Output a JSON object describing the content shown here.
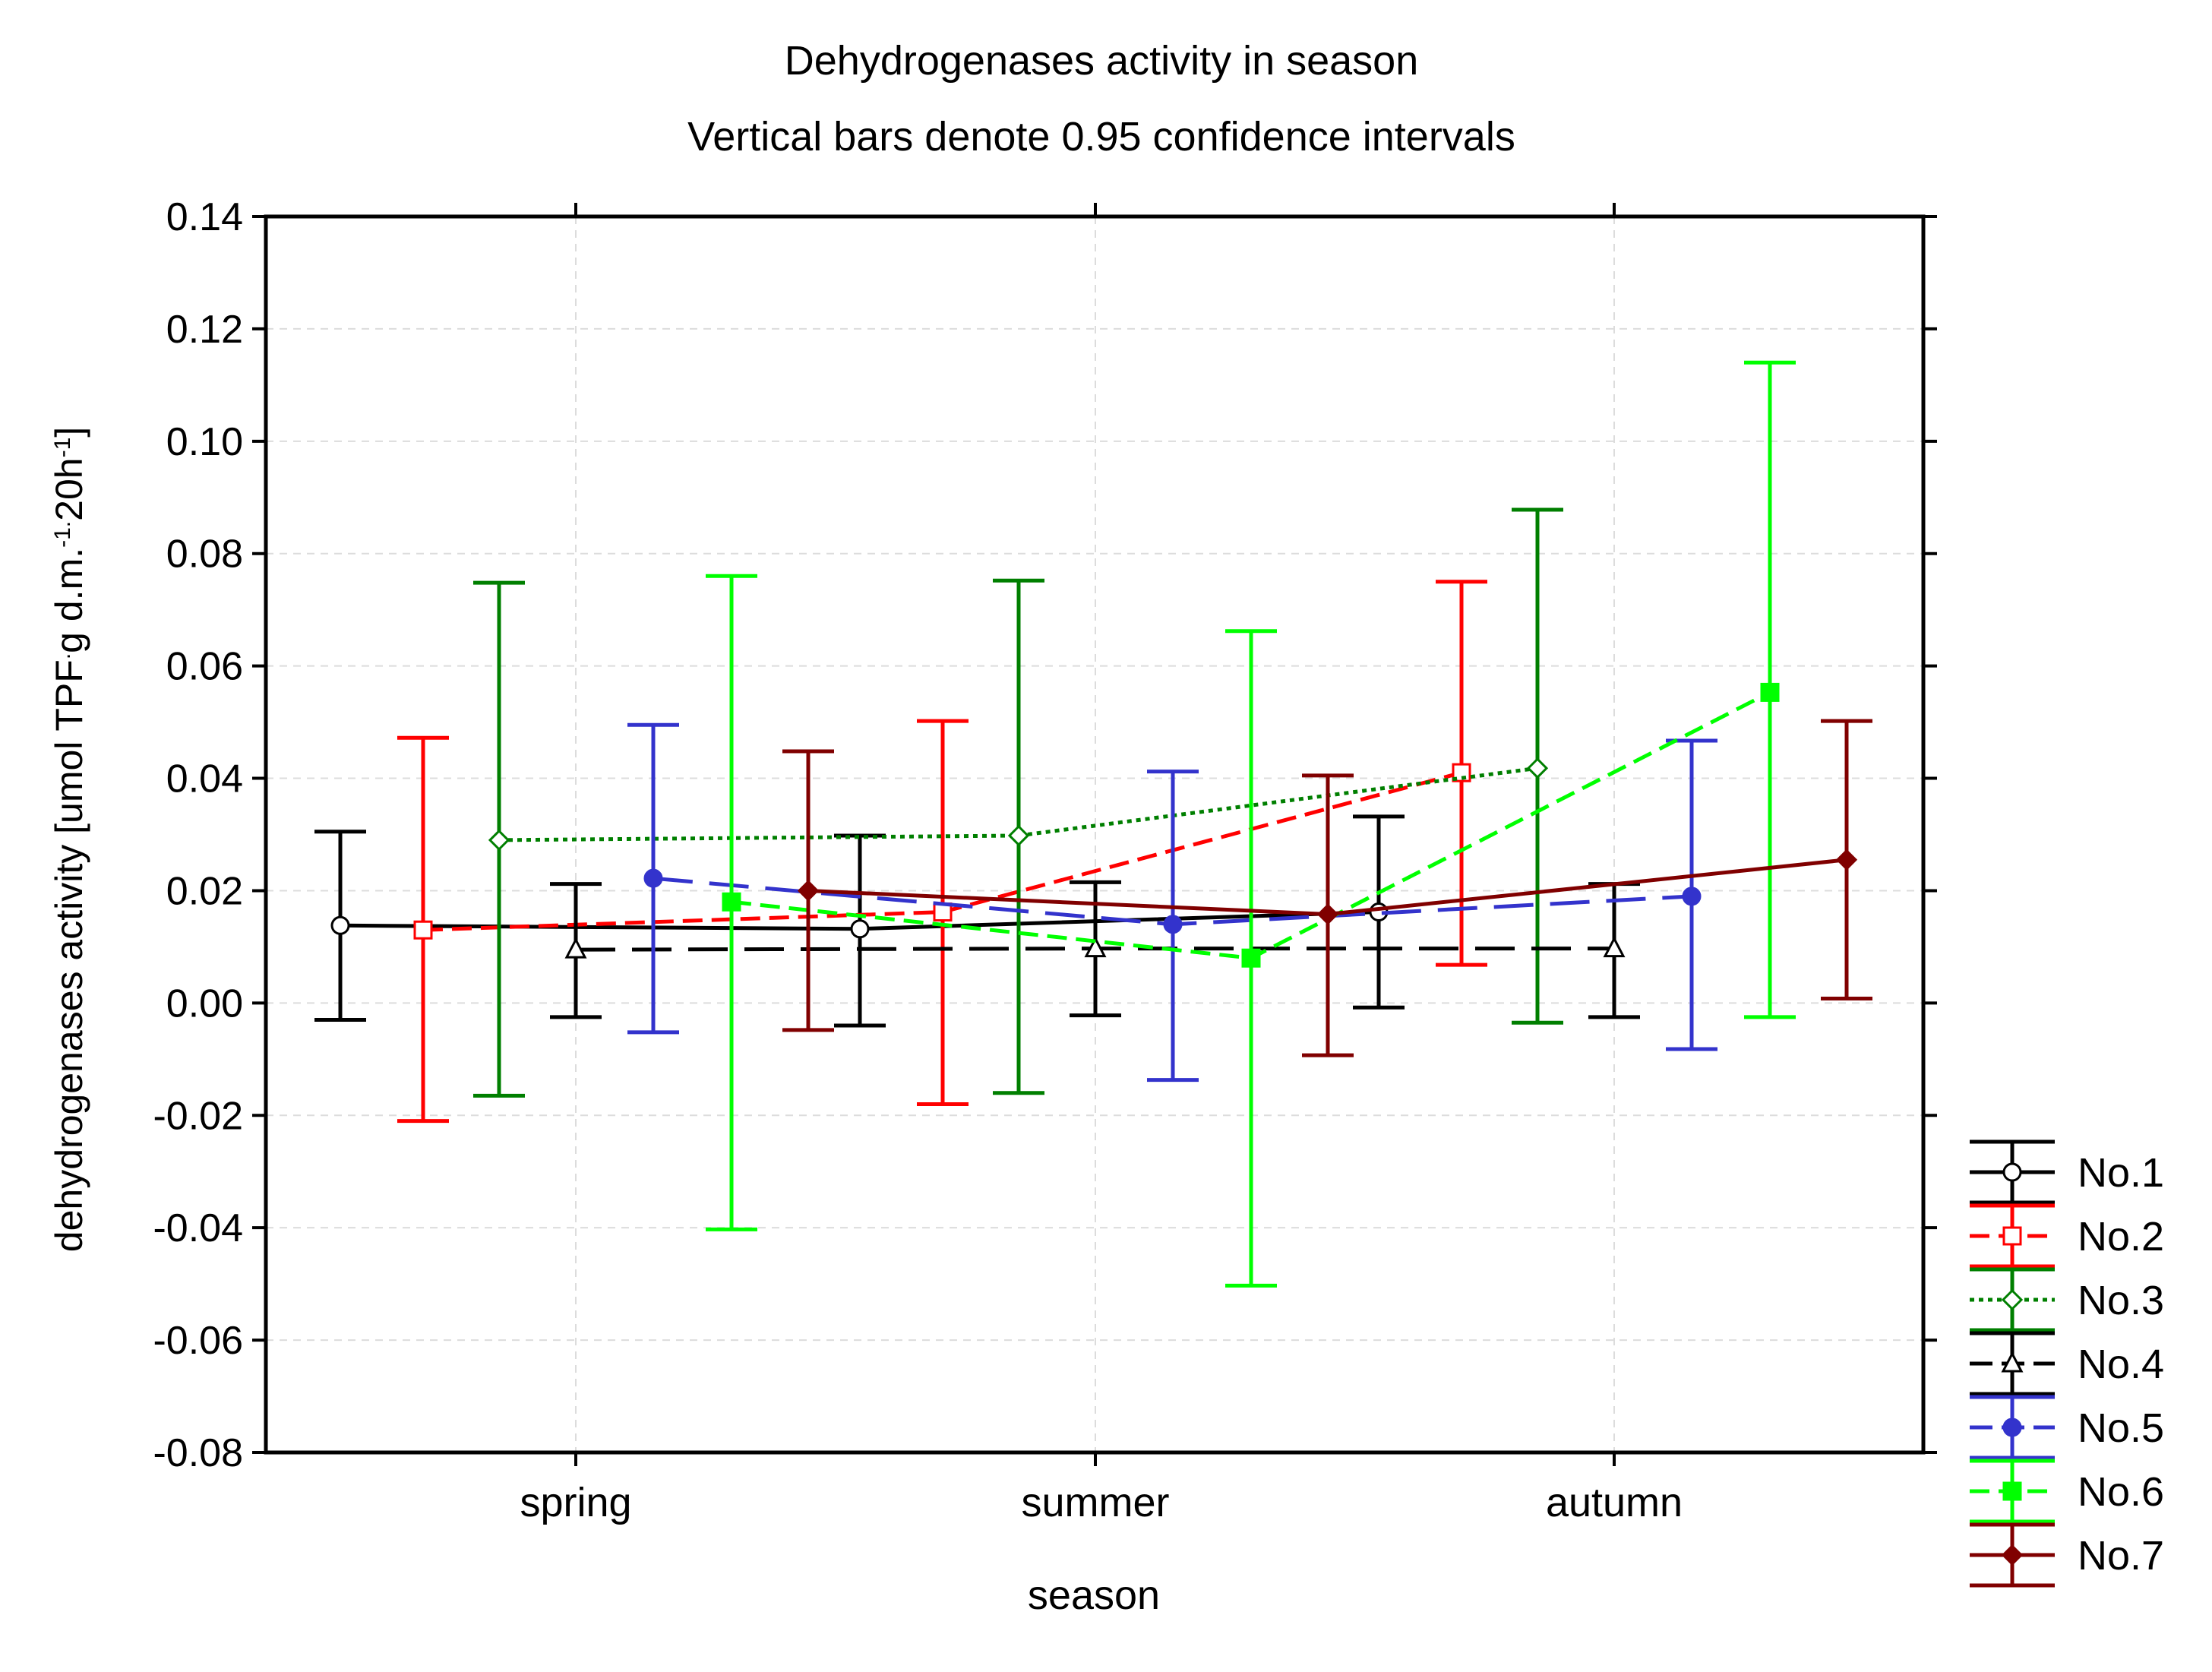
{
  "chart_data": {
    "type": "line",
    "title": "Dehydrogenases activity in season",
    "subtitle": "Vertical bars denote 0.95 confidence intervals",
    "xlabel": "season",
    "ylabel": {
      "parts": [
        {
          "t": "dehydrogenases activity [umol TPF",
          "s": ""
        },
        {
          "t": ".",
          "s": "sup"
        },
        {
          "t": "g d.m.",
          "s": ""
        },
        {
          "t": "-1",
          "s": "sup"
        },
        {
          "t": ".",
          "s": "sup"
        },
        {
          "t": "20h",
          "s": ""
        },
        {
          "t": "-1",
          "s": "sup"
        },
        {
          "t": "]",
          "s": ""
        }
      ]
    },
    "categories": [
      "spring",
      "summer",
      "autumn"
    ],
    "ylim": [
      -0.08,
      0.14
    ],
    "yticks": [
      "-0.08",
      "-0.06",
      "-0.04",
      "-0.02",
      "0.00",
      "0.02",
      "0.04",
      "0.06",
      "0.08",
      "0.10",
      "0.12",
      "0.14"
    ],
    "grid": true,
    "legend_position": "bottom-right outside plot",
    "series": [
      {
        "name": "No.1",
        "color": "#000000",
        "line": "solid",
        "marker": "circle-open",
        "values": [
          0.0138,
          0.0132,
          0.0162
        ],
        "lower": [
          -0.003,
          -0.004,
          -0.0008
        ],
        "upper": [
          0.0305,
          0.0298,
          0.0332
        ]
      },
      {
        "name": "No.2",
        "color": "#ff0000",
        "line": "dashed",
        "marker": "square-open",
        "values": [
          0.013,
          0.0162,
          0.041
        ],
        "lower": [
          -0.021,
          -0.018,
          0.0068
        ],
        "upper": [
          0.0472,
          0.0502,
          0.075
        ]
      },
      {
        "name": "No.3",
        "color": "#007f00",
        "line": "dotted",
        "marker": "diamond-open",
        "values": [
          0.029,
          0.0298,
          0.0418
        ],
        "lower": [
          -0.0165,
          -0.016,
          -0.0035
        ],
        "upper": [
          0.0748,
          0.0752,
          0.0878
        ]
      },
      {
        "name": "No.4",
        "color": "#000000",
        "line": "longdash",
        "marker": "triangle-open",
        "values": [
          0.0095,
          0.0097,
          0.0097
        ],
        "lower": [
          -0.0025,
          -0.0022,
          -0.0025
        ],
        "upper": [
          0.0212,
          0.0215,
          0.0212
        ]
      },
      {
        "name": "No.5",
        "color": "#3333cc",
        "line": "longdash",
        "marker": "circle-filled",
        "values": [
          0.0222,
          0.014,
          0.019
        ],
        "lower": [
          -0.0052,
          -0.0137,
          -0.0082
        ],
        "upper": [
          0.0495,
          0.0412,
          0.0467
        ]
      },
      {
        "name": "No.6",
        "color": "#00ff00",
        "line": "dashed",
        "marker": "square-filled",
        "values": [
          0.018,
          0.008,
          0.0553
        ],
        "lower": [
          -0.0403,
          -0.0503,
          -0.0025
        ],
        "upper": [
          0.076,
          0.0662,
          0.114
        ]
      },
      {
        "name": "No.7",
        "color": "#800000",
        "line": "solid",
        "marker": "diamond-filled",
        "values": [
          0.02,
          0.0158,
          0.0255
        ],
        "lower": [
          -0.0048,
          -0.0093,
          0.0008
        ],
        "upper": [
          0.0448,
          0.0405,
          0.0502
        ]
      }
    ]
  }
}
